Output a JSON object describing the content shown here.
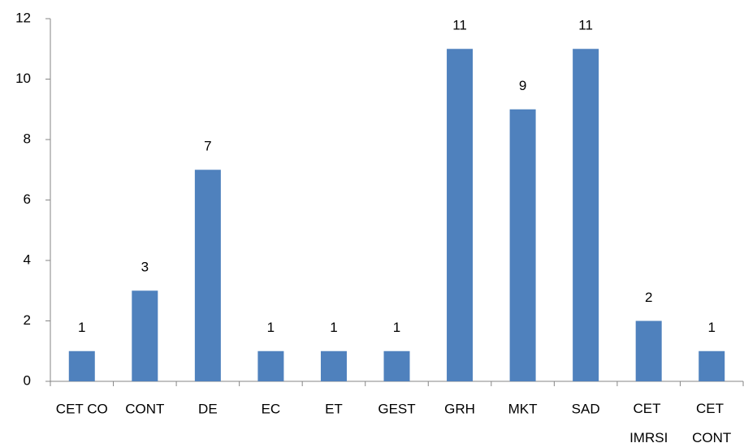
{
  "chart_data": {
    "type": "bar",
    "categories": [
      "CET CO",
      "CONT",
      "DE",
      "EC",
      "ET",
      "GEST",
      "GRH",
      "MKT",
      "SAD",
      "CET IMRSI",
      "CET CONT"
    ],
    "values": [
      1,
      3,
      7,
      1,
      1,
      1,
      11,
      9,
      11,
      2,
      1
    ],
    "color": "#4f81bd",
    "ylim": [
      0,
      12
    ],
    "yticks": [
      0,
      2,
      4,
      6,
      8,
      10,
      12
    ],
    "grid": false,
    "data_labels": true
  }
}
